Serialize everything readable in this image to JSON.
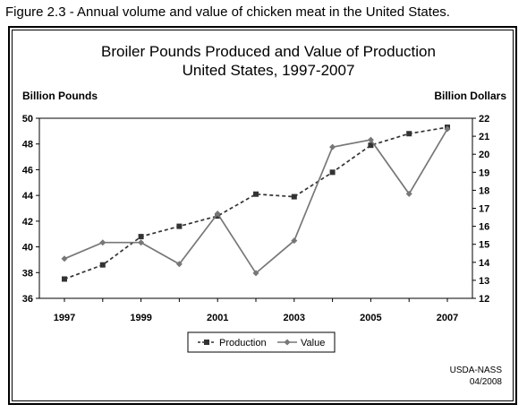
{
  "figure_caption": "Figure 2.3 - Annual volume and value of chicken meat in the United States.",
  "source": {
    "line1": "USDA-NASS",
    "line2": "04/2008"
  },
  "chart_data": {
    "type": "line",
    "title_line1": "Broiler Pounds Produced and Value of Production",
    "title_line2": "United States, 1997-2007",
    "ylabel_left": "Billion Pounds",
    "ylabel_right": "Billion Dollars",
    "x": [
      1997,
      1998,
      1999,
      2000,
      2001,
      2002,
      2003,
      2004,
      2005,
      2006,
      2007
    ],
    "x_tick_labels": [
      "1997",
      "1999",
      "2001",
      "2003",
      "2005",
      "2007"
    ],
    "ylim_left": [
      36,
      50
    ],
    "ylim_right": [
      12,
      22
    ],
    "y_left_ticks": [
      36,
      38,
      40,
      42,
      44,
      46,
      48,
      50
    ],
    "y_right_ticks": [
      12,
      13,
      14,
      15,
      16,
      17,
      18,
      19,
      20,
      21,
      22
    ],
    "legend_position": "bottom",
    "series": [
      {
        "name": "Production",
        "axis": "left",
        "marker": "square",
        "line_style": "dashed",
        "values": [
          37.5,
          38.6,
          40.8,
          41.6,
          42.4,
          44.1,
          43.9,
          45.8,
          47.9,
          48.8,
          49.3
        ]
      },
      {
        "name": "Value",
        "axis": "right",
        "marker": "diamond",
        "line_style": "solid",
        "values": [
          14.2,
          15.1,
          15.1,
          13.9,
          16.7,
          13.4,
          15.2,
          20.4,
          20.8,
          17.8,
          21.4
        ]
      }
    ]
  }
}
